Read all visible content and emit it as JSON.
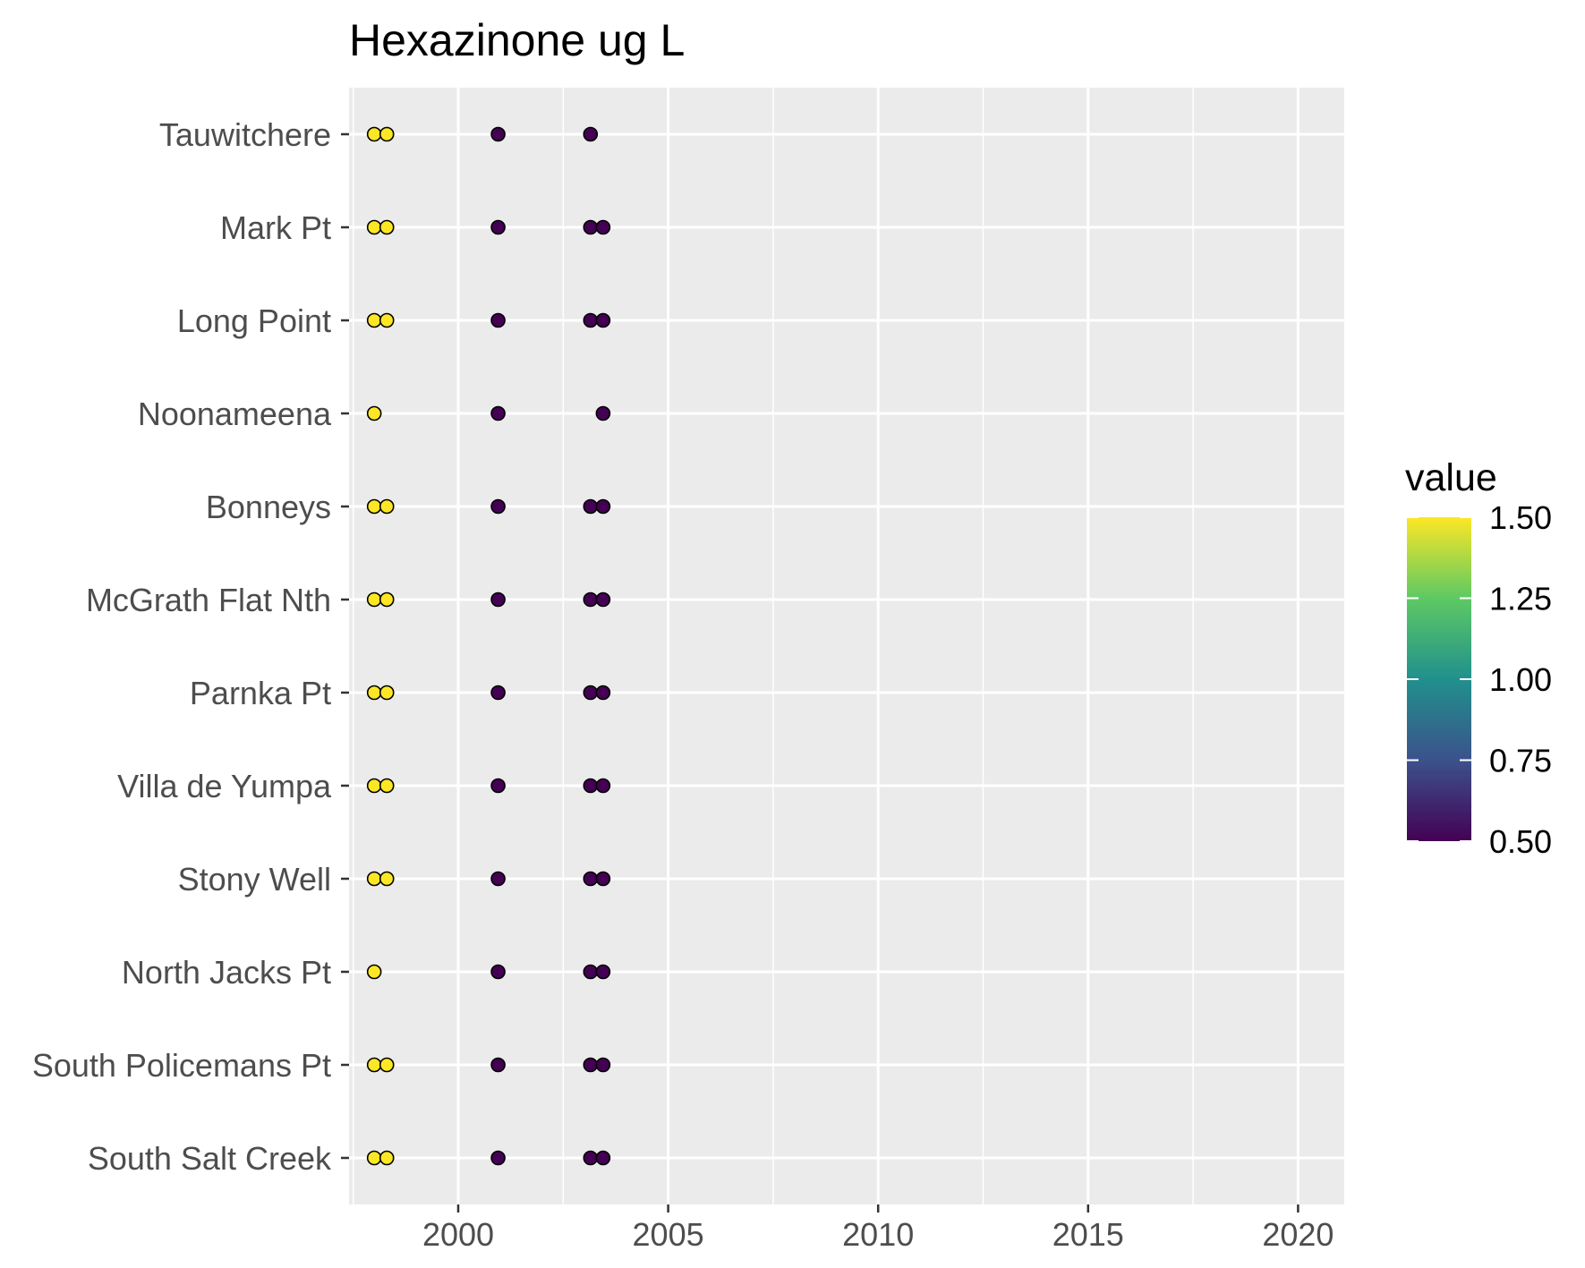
{
  "chart_data": {
    "type": "scatter",
    "title": "Hexazinone ug L",
    "xlabel": "",
    "ylabel": "",
    "xlim": [
      1997.4,
      2021.1
    ],
    "x_ticks": [
      2000,
      2005,
      2010,
      2015,
      2020
    ],
    "categories": [
      "Tauwitchere",
      "Mark Pt",
      "Long Point",
      "Noonameena",
      "Bonneys",
      "McGrath Flat Nth",
      "Parnka Pt",
      "Villa de Yumpa",
      "Stony Well",
      "North Jacks Pt",
      "South Policemans Pt",
      "South Salt Creek"
    ],
    "points": [
      {
        "site": "Tauwitchere",
        "x": 1998.0,
        "value": 1.5
      },
      {
        "site": "Tauwitchere",
        "x": 1998.3,
        "value": 1.5
      },
      {
        "site": "Tauwitchere",
        "x": 2000.95,
        "value": 0.5
      },
      {
        "site": "Tauwitchere",
        "x": 2003.15,
        "value": 0.5
      },
      {
        "site": "Mark Pt",
        "x": 1998.0,
        "value": 1.5
      },
      {
        "site": "Mark Pt",
        "x": 1998.3,
        "value": 1.5
      },
      {
        "site": "Mark Pt",
        "x": 2000.95,
        "value": 0.5
      },
      {
        "site": "Mark Pt",
        "x": 2003.15,
        "value": 0.5
      },
      {
        "site": "Mark Pt",
        "x": 2003.45,
        "value": 0.5
      },
      {
        "site": "Long Point",
        "x": 1998.0,
        "value": 1.5
      },
      {
        "site": "Long Point",
        "x": 1998.3,
        "value": 1.5
      },
      {
        "site": "Long Point",
        "x": 2000.95,
        "value": 0.5
      },
      {
        "site": "Long Point",
        "x": 2003.15,
        "value": 0.5
      },
      {
        "site": "Long Point",
        "x": 2003.45,
        "value": 0.5
      },
      {
        "site": "Noonameena",
        "x": 1998.0,
        "value": 1.5
      },
      {
        "site": "Noonameena",
        "x": 2000.95,
        "value": 0.5
      },
      {
        "site": "Noonameena",
        "x": 2003.45,
        "value": 0.5
      },
      {
        "site": "Bonneys",
        "x": 1998.0,
        "value": 1.5
      },
      {
        "site": "Bonneys",
        "x": 1998.3,
        "value": 1.5
      },
      {
        "site": "Bonneys",
        "x": 2000.95,
        "value": 0.5
      },
      {
        "site": "Bonneys",
        "x": 2003.15,
        "value": 0.5
      },
      {
        "site": "Bonneys",
        "x": 2003.45,
        "value": 0.5
      },
      {
        "site": "McGrath Flat Nth",
        "x": 1998.0,
        "value": 1.5
      },
      {
        "site": "McGrath Flat Nth",
        "x": 1998.3,
        "value": 1.5
      },
      {
        "site": "McGrath Flat Nth",
        "x": 2000.95,
        "value": 0.5
      },
      {
        "site": "McGrath Flat Nth",
        "x": 2003.15,
        "value": 0.5
      },
      {
        "site": "McGrath Flat Nth",
        "x": 2003.45,
        "value": 0.5
      },
      {
        "site": "Parnka Pt",
        "x": 1998.0,
        "value": 1.5
      },
      {
        "site": "Parnka Pt",
        "x": 1998.3,
        "value": 1.5
      },
      {
        "site": "Parnka Pt",
        "x": 2000.95,
        "value": 0.5
      },
      {
        "site": "Parnka Pt",
        "x": 2003.15,
        "value": 0.5
      },
      {
        "site": "Parnka Pt",
        "x": 2003.45,
        "value": 0.5
      },
      {
        "site": "Villa de Yumpa",
        "x": 1998.0,
        "value": 1.5
      },
      {
        "site": "Villa de Yumpa",
        "x": 1998.3,
        "value": 1.5
      },
      {
        "site": "Villa de Yumpa",
        "x": 2000.95,
        "value": 0.5
      },
      {
        "site": "Villa de Yumpa",
        "x": 2003.15,
        "value": 0.5
      },
      {
        "site": "Villa de Yumpa",
        "x": 2003.45,
        "value": 0.5
      },
      {
        "site": "Stony Well",
        "x": 1998.0,
        "value": 1.5
      },
      {
        "site": "Stony Well",
        "x": 1998.3,
        "value": 1.5
      },
      {
        "site": "Stony Well",
        "x": 2000.95,
        "value": 0.5
      },
      {
        "site": "Stony Well",
        "x": 2003.15,
        "value": 0.5
      },
      {
        "site": "Stony Well",
        "x": 2003.45,
        "value": 0.5
      },
      {
        "site": "North Jacks Pt",
        "x": 1998.0,
        "value": 1.5
      },
      {
        "site": "North Jacks Pt",
        "x": 2000.95,
        "value": 0.5
      },
      {
        "site": "North Jacks Pt",
        "x": 2003.15,
        "value": 0.5
      },
      {
        "site": "North Jacks Pt",
        "x": 2003.45,
        "value": 0.5
      },
      {
        "site": "South Policemans Pt",
        "x": 1998.0,
        "value": 1.5
      },
      {
        "site": "South Policemans Pt",
        "x": 1998.3,
        "value": 1.5
      },
      {
        "site": "South Policemans Pt",
        "x": 2000.95,
        "value": 0.5
      },
      {
        "site": "South Policemans Pt",
        "x": 2003.15,
        "value": 0.5
      },
      {
        "site": "South Policemans Pt",
        "x": 2003.45,
        "value": 0.5
      },
      {
        "site": "South Salt Creek",
        "x": 1998.0,
        "value": 1.5
      },
      {
        "site": "South Salt Creek",
        "x": 1998.3,
        "value": 1.5
      },
      {
        "site": "South Salt Creek",
        "x": 2000.95,
        "value": 0.5
      },
      {
        "site": "South Salt Creek",
        "x": 2003.15,
        "value": 0.5
      },
      {
        "site": "South Salt Creek",
        "x": 2003.45,
        "value": 0.5
      }
    ],
    "legend": {
      "title": "value",
      "placement": "right",
      "range": [
        0.5,
        1.5
      ],
      "ticks": [
        1.5,
        1.25,
        1.0,
        0.75,
        0.5
      ],
      "tick_labels": [
        "1.50",
        "1.25",
        "1.00",
        "0.75",
        "0.50"
      ],
      "colormap": [
        "#440154",
        "#3b528b",
        "#21908d",
        "#5dc963",
        "#fde725"
      ]
    },
    "grid": true,
    "panel_background": "#ebebeb",
    "grid_color": "#ffffff"
  }
}
